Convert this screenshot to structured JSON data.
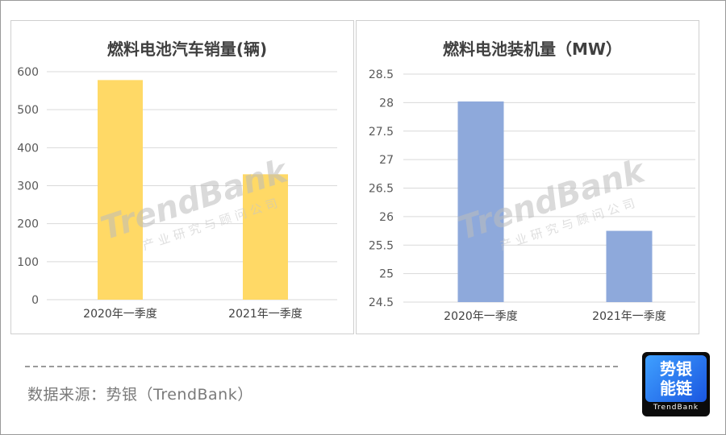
{
  "source_text": "数据来源：势银（TrendBank）",
  "logo": {
    "line1": "势银",
    "line2": "能链",
    "brand": "TrendBank"
  },
  "watermark": {
    "brand": "TrendBank",
    "sub": "产业研究与顾问公司"
  },
  "chart_data": [
    {
      "type": "bar",
      "title": "燃料电池汽车销量(辆)",
      "categories": [
        "2020年一季度",
        "2021年一季度"
      ],
      "values": [
        578,
        330
      ],
      "ylim": [
        0,
        600
      ],
      "yticks": [
        0,
        100,
        200,
        300,
        400,
        500,
        600
      ],
      "yticklabels": [
        "0",
        "100",
        "200",
        "300",
        "400",
        "500",
        "600"
      ],
      "grid": true,
      "color": "#FFD966"
    },
    {
      "type": "bar",
      "title": "燃料电池装机量（MW）",
      "categories": [
        "2020年一季度",
        "2021年一季度"
      ],
      "values": [
        28.02,
        25.75
      ],
      "ylim": [
        24.5,
        28.5
      ],
      "yticks": [
        24.5,
        25,
        25.5,
        26,
        26.5,
        27,
        27.5,
        28,
        28.5
      ],
      "yticklabels": [
        "24.5",
        "25",
        "25.5",
        "26",
        "26.5",
        "27",
        "27.5",
        "28",
        "28.5"
      ],
      "grid": true,
      "color": "#8EA9DB"
    }
  ]
}
